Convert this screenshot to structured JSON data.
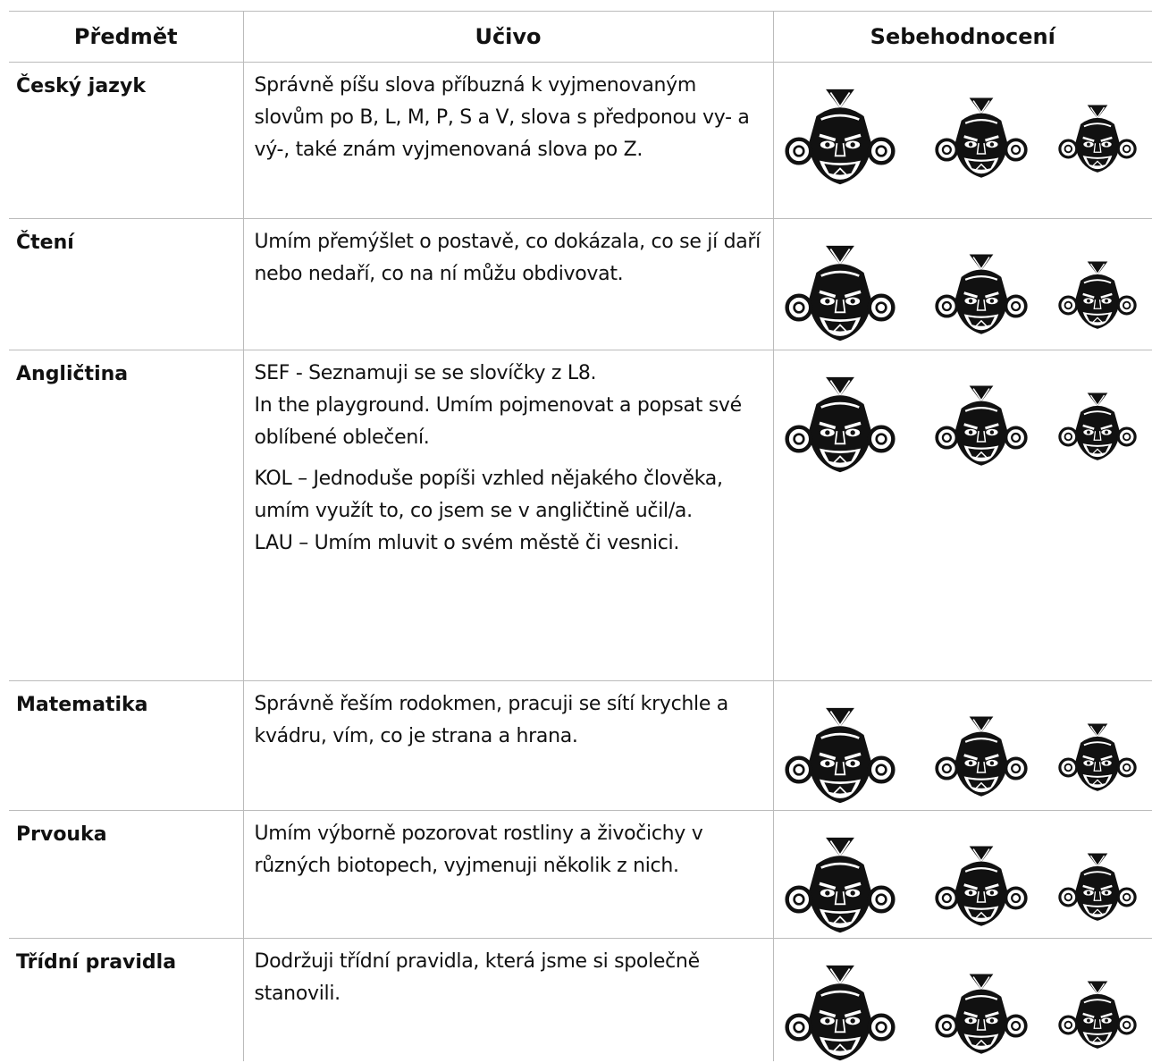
{
  "table": {
    "header": [
      "Předmět",
      "Učivo",
      "Sebehodnocení"
    ],
    "rows": [
      {
        "subject": "Český jazyk",
        "content": [
          [
            "Správně píšu slova příbuzná k vyjmenovaným slovům po B, L, M, P, S a V, slova s předponou vy- a vý-, také znám vyjmenovaná slova po Z."
          ]
        ]
      },
      {
        "subject": "Čtení",
        "content": [
          [
            "Umím přemýšlet o postavě, co dokázala, co se jí daří nebo nedaří, co na ní můžu obdivovat."
          ]
        ]
      },
      {
        "subject": "Angličtina",
        "content": [
          [
            "SEF - Seznamuji se se slovíčky z L8.",
            "In the playground. Umím pojmenovat a popsat své oblíbené oblečení."
          ],
          [
            "KOL – Jednoduše popíši vzhled nějakého člověka, umím využít to, co jsem se v angličtině učil/a.",
            "LAU – Umím mluvit o svém městě či vesnici."
          ]
        ]
      },
      {
        "subject": "Matematika",
        "content": [
          [
            "Správně řeším rodokmen, pracuji se sítí krychle a kvádru, vím, co je strana a hrana."
          ]
        ]
      },
      {
        "subject": "Prvouka",
        "content": [
          [
            "Umím výborně pozorovat rostliny a živočichy v různých biotopech, vyjmenuji několik z nich."
          ]
        ]
      },
      {
        "subject": "Třídní pravidla",
        "content": [
          [
            "Dodržuji třídní pravidla, která jsme si společně stanovili."
          ]
        ]
      }
    ]
  }
}
